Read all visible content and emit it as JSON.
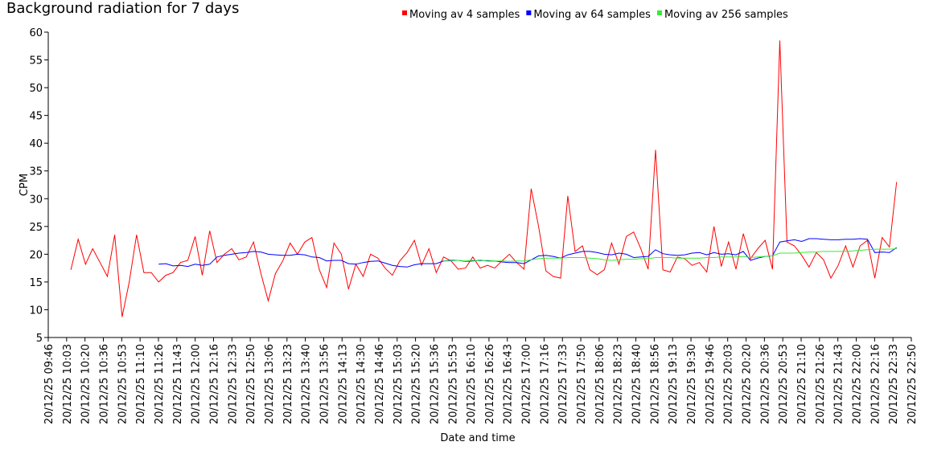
{
  "chart_data": {
    "type": "line",
    "title": "Background radiation for 7 days",
    "xlabel": "Date and time",
    "ylabel": "CPM",
    "ylim": [
      5,
      60
    ],
    "yticks": [
      5,
      10,
      15,
      20,
      25,
      30,
      35,
      40,
      45,
      50,
      55,
      60
    ],
    "xlim": [
      0,
      47
    ],
    "xticks": [
      {
        "value": 0,
        "label": "20/12/25 09:46"
      },
      {
        "value": 1,
        "label": "20/12/25 10:03"
      },
      {
        "value": 2,
        "label": "20/12/25 10:20"
      },
      {
        "value": 3,
        "label": "20/12/25 10:36"
      },
      {
        "value": 4,
        "label": "20/12/25 10:53"
      },
      {
        "value": 5,
        "label": "20/12/25 11:10"
      },
      {
        "value": 6,
        "label": "20/12/25 11:26"
      },
      {
        "value": 7,
        "label": "20/12/25 11:43"
      },
      {
        "value": 8,
        "label": "20/12/25 12:00"
      },
      {
        "value": 9,
        "label": "20/12/25 12:16"
      },
      {
        "value": 10,
        "label": "20/12/25 12:33"
      },
      {
        "value": 11,
        "label": "20/12/25 12:50"
      },
      {
        "value": 12,
        "label": "20/12/25 13:06"
      },
      {
        "value": 13,
        "label": "20/12/25 13:23"
      },
      {
        "value": 14,
        "label": "20/12/25 13:40"
      },
      {
        "value": 15,
        "label": "20/12/25 13:56"
      },
      {
        "value": 16,
        "label": "20/12/25 14:13"
      },
      {
        "value": 17,
        "label": "20/12/25 14:30"
      },
      {
        "value": 18,
        "label": "20/12/25 14:46"
      },
      {
        "value": 19,
        "label": "20/12/25 15:03"
      },
      {
        "value": 20,
        "label": "20/12/25 15:20"
      },
      {
        "value": 21,
        "label": "20/12/25 15:36"
      },
      {
        "value": 22,
        "label": "20/12/25 15:53"
      },
      {
        "value": 23,
        "label": "20/12/25 16:10"
      },
      {
        "value": 24,
        "label": "20/12/25 16:26"
      },
      {
        "value": 25,
        "label": "20/12/25 16:43"
      },
      {
        "value": 26,
        "label": "20/12/25 17:00"
      },
      {
        "value": 27,
        "label": "20/12/25 17:16"
      },
      {
        "value": 28,
        "label": "20/12/25 17:33"
      },
      {
        "value": 29,
        "label": "20/12/25 17:50"
      },
      {
        "value": 30,
        "label": "20/12/25 18:06"
      },
      {
        "value": 31,
        "label": "20/12/25 18:23"
      },
      {
        "value": 32,
        "label": "20/12/25 18:40"
      },
      {
        "value": 33,
        "label": "20/12/25 18:56"
      },
      {
        "value": 34,
        "label": "20/12/25 19:13"
      },
      {
        "value": 35,
        "label": "20/12/25 19:30"
      },
      {
        "value": 36,
        "label": "20/12/25 19:46"
      },
      {
        "value": 37,
        "label": "20/12/25 20:03"
      },
      {
        "value": 38,
        "label": "20/12/25 20:20"
      },
      {
        "value": 39,
        "label": "20/12/25 20:36"
      },
      {
        "value": 40,
        "label": "20/12/25 20:53"
      },
      {
        "value": 41,
        "label": "20/12/25 21:10"
      },
      {
        "value": 42,
        "label": "20/12/25 21:26"
      },
      {
        "value": 43,
        "label": "20/12/25 21:43"
      },
      {
        "value": 44,
        "label": "20/12/25 22:00"
      },
      {
        "value": 45,
        "label": "20/12/25 22:16"
      },
      {
        "value": 46,
        "label": "20/12/25 22:33"
      },
      {
        "value": 47,
        "label": "20/12/25 22:50"
      }
    ],
    "x": [
      1.23,
      1.63,
      2.03,
      2.42,
      2.82,
      3.22,
      3.62,
      4.02,
      4.41,
      4.81,
      5.21,
      5.61,
      6.01,
      6.4,
      6.8,
      7.2,
      7.6,
      8.0,
      8.39,
      8.79,
      9.19,
      9.59,
      9.99,
      10.38,
      10.78,
      11.18,
      11.58,
      11.98,
      12.37,
      12.77,
      13.17,
      13.57,
      13.97,
      14.36,
      14.76,
      15.16,
      15.56,
      15.96,
      16.35,
      16.75,
      17.15,
      17.55,
      17.95,
      18.34,
      18.74,
      19.14,
      19.54,
      19.94,
      20.33,
      20.73,
      21.13,
      21.53,
      21.93,
      22.32,
      22.72,
      23.12,
      23.52,
      23.92,
      24.31,
      24.71,
      25.11,
      25.51,
      25.91,
      26.3,
      26.7,
      27.1,
      27.5,
      27.9,
      28.29,
      28.69,
      29.09,
      29.49,
      29.89,
      30.28,
      30.68,
      31.08,
      31.48,
      31.88,
      32.27,
      32.67,
      33.07,
      33.47,
      33.87,
      34.26,
      34.66,
      35.06,
      35.46,
      35.86,
      36.25,
      36.65,
      37.05,
      37.45,
      37.85,
      38.24,
      38.64,
      39.04,
      39.44,
      39.84,
      40.23,
      40.63,
      41.03,
      41.43,
      41.83,
      42.22,
      42.62,
      43.02,
      43.42,
      43.82,
      44.21,
      44.61,
      45.01,
      45.41,
      45.81,
      46.2
    ],
    "series": [
      {
        "name": "Moving av 4 samples",
        "color": "#ff0000",
        "values": [
          17.2,
          22.7,
          18.2,
          21,
          18.5,
          16,
          23.5,
          8.7,
          15,
          23.5,
          16.7,
          16.7,
          15,
          16.2,
          16.7,
          18.5,
          18.9,
          23.2,
          16.2,
          24.2,
          18.5,
          20,
          21,
          19,
          19.5,
          22.2,
          16.5,
          11.6,
          16.5,
          18.8,
          22,
          20,
          22.2,
          23,
          17.2,
          14,
          22,
          20,
          13.7,
          18.2,
          16,
          20,
          19.3,
          17.5,
          16.2,
          18.8,
          20.3,
          22.5,
          18,
          21,
          16.7,
          19.5,
          18.8,
          17.3,
          17.5,
          19.5,
          17.5,
          18,
          17.5,
          18.8,
          20,
          18.5,
          17.3,
          31.8,
          25,
          17,
          16,
          15.7,
          30.5,
          20.5,
          21.5,
          17.2,
          16.3,
          17.2,
          22,
          18.2,
          23.2,
          24,
          21,
          17.3,
          38.8,
          17.2,
          16.8,
          19.5,
          19.2,
          18,
          18.5,
          16.8,
          25,
          17.8,
          22.2,
          17.3,
          23.7,
          19.2,
          21,
          22.5,
          17.3,
          58.5,
          22.2,
          21.5,
          19.8,
          17.7,
          20.3,
          19,
          15.7,
          18,
          21.5,
          17.7,
          21.5,
          22.5,
          15.7,
          23,
          21.3,
          33
        ]
      },
      {
        "name": "Moving av 64 samples",
        "color": "#0000ff",
        "values": [
          null,
          null,
          null,
          null,
          null,
          null,
          null,
          null,
          null,
          null,
          null,
          null,
          18.2,
          18.3,
          17.9,
          18,
          17.8,
          18.2,
          18,
          18.2,
          19.5,
          19.8,
          20,
          20.2,
          20.3,
          20.5,
          20.4,
          20,
          19.9,
          19.8,
          19.8,
          20,
          19.9,
          19.5,
          19.4,
          18.8,
          18.9,
          18.9,
          18.3,
          18.2,
          18.5,
          18.7,
          18.8,
          18.4,
          18,
          17.8,
          17.7,
          18.1,
          18.3,
          18.3,
          18.3,
          18.8,
          18.9,
          18.9,
          18.7,
          18.8,
          18.9,
          18.8,
          18.8,
          18.6,
          18.5,
          18.5,
          18.3,
          19,
          19.7,
          19.8,
          19.6,
          19.3,
          19.9,
          20.2,
          20.5,
          20.5,
          20.3,
          20,
          19.9,
          20.2,
          20,
          19.4,
          19.5,
          19.6,
          20.8,
          20.1,
          19.9,
          19.8,
          19.9,
          20.2,
          20.3,
          19.9,
          20.3,
          20,
          20.1,
          19.9,
          20.5,
          18.9,
          19.3,
          19.6,
          19.7,
          22.2,
          22.4,
          22.6,
          22.3,
          22.8,
          22.8,
          22.7,
          22.6,
          22.6,
          22.7,
          22.7,
          22.8,
          22.7,
          20.3,
          20.4,
          20.3,
          21.2
        ]
      },
      {
        "name": "Moving av 256 samples",
        "color": "#33ee33",
        "values": [
          null,
          null,
          null,
          null,
          null,
          null,
          null,
          null,
          null,
          null,
          null,
          null,
          null,
          null,
          null,
          null,
          null,
          null,
          null,
          null,
          null,
          null,
          null,
          null,
          null,
          null,
          null,
          null,
          null,
          null,
          null,
          null,
          null,
          null,
          null,
          null,
          null,
          null,
          null,
          null,
          null,
          null,
          null,
          null,
          null,
          null,
          null,
          null,
          null,
          null,
          null,
          18.8,
          18.8,
          18.9,
          18.8,
          18.9,
          18.8,
          18.9,
          18.8,
          18.8,
          18.7,
          18.8,
          18.8,
          19,
          19.2,
          19.3,
          19.3,
          19.3,
          19.4,
          19.4,
          19.4,
          19.3,
          19.2,
          19,
          18.9,
          19,
          19.1,
          19.1,
          19.2,
          19.2,
          19.4,
          19.4,
          19.4,
          19.3,
          19.3,
          19.3,
          19.3,
          19.4,
          19.4,
          19.5,
          19.5,
          19.5,
          19.6,
          19.4,
          19.5,
          19.6,
          19.7,
          20.2,
          20.2,
          20.2,
          20.3,
          20.4,
          20.4,
          20.5,
          20.5,
          20.5,
          20.5,
          20.6,
          20.7,
          20.8,
          20.9,
          20.9,
          20.9,
          21
        ]
      }
    ]
  }
}
